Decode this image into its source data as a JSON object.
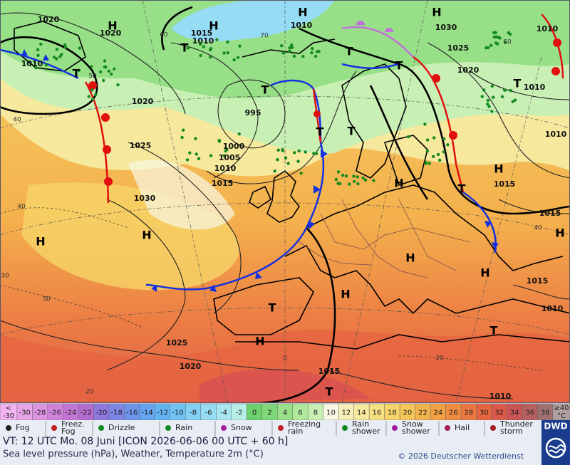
{
  "map": {
    "pressure_labels": [
      "1020",
      "1020",
      "1010",
      "1015",
      "1010",
      "1010",
      "1030",
      "1025",
      "1020",
      "1010",
      "1020",
      "995",
      "1025",
      "1000",
      "1005",
      "1010",
      "1015",
      "1030",
      "1015",
      "1010",
      "1015",
      "1015",
      "1010",
      "1025",
      "1020",
      "1015",
      "1010",
      "1010"
    ],
    "isotherm_labels": [
      "60",
      "60",
      "50",
      "40",
      "40",
      "30",
      "30",
      "40",
      "20",
      "20",
      "0",
      "70"
    ],
    "highs": [
      "H",
      "H",
      "H",
      "H",
      "H",
      "H",
      "H",
      "H",
      "H",
      "H",
      "H",
      "H",
      "H"
    ],
    "lows": [
      "T",
      "T",
      "T",
      "T",
      "T",
      "T",
      "T",
      "T",
      "T",
      "T",
      "T",
      "T"
    ]
  },
  "temperature_scale": {
    "low": {
      "lines": [
        "<",
        "-30"
      ],
      "color": "#f4b4f4"
    },
    "steps": [
      {
        "label": "-30",
        "color": "#e9a3e9"
      },
      {
        "label": "-28",
        "color": "#de93e3"
      },
      {
        "label": "-26",
        "color": "#d183dc"
      },
      {
        "label": "-24",
        "color": "#c476d6"
      },
      {
        "label": "-22",
        "color": "#b46bd0"
      },
      {
        "label": "-20",
        "color": "#8c78e0"
      },
      {
        "label": "-18",
        "color": "#7d86e6"
      },
      {
        "label": "-16",
        "color": "#6e94ec"
      },
      {
        "label": "-14",
        "color": "#64a4f0"
      },
      {
        "label": "-12",
        "color": "#62b4f2"
      },
      {
        "label": "-10",
        "color": "#6fc4f4"
      },
      {
        "label": "-8",
        "color": "#82d0f4"
      },
      {
        "label": "-6",
        "color": "#96dcf4"
      },
      {
        "label": "-4",
        "color": "#a8e6f0"
      },
      {
        "label": "-2",
        "color": "#b8eee8"
      },
      {
        "label": "0",
        "color": "#6cd06c"
      },
      {
        "label": "2",
        "color": "#80d878"
      },
      {
        "label": "4",
        "color": "#98e088"
      },
      {
        "label": "6",
        "color": "#b0e89c"
      },
      {
        "label": "8",
        "color": "#c8f0b4"
      },
      {
        "label": "10",
        "color": "#f8f8e4"
      },
      {
        "label": "12",
        "color": "#f6f0b8"
      },
      {
        "label": "14",
        "color": "#f6e89c"
      },
      {
        "label": "16",
        "color": "#f6e080"
      },
      {
        "label": "18",
        "color": "#f6d468"
      },
      {
        "label": "20",
        "color": "#f6c658"
      },
      {
        "label": "22",
        "color": "#f4b44c"
      },
      {
        "label": "24",
        "color": "#f2a044"
      },
      {
        "label": "26",
        "color": "#f08c40"
      },
      {
        "label": "28",
        "color": "#ec7840"
      },
      {
        "label": "30",
        "color": "#e66440"
      },
      {
        "label": "32",
        "color": "#dc5848"
      },
      {
        "label": "34",
        "color": "#cc5454"
      },
      {
        "label": "36",
        "color": "#b86060"
      },
      {
        "label": "38",
        "color": "#a07070"
      }
    ],
    "high": {
      "lines": [
        "≥40",
        "°C"
      ],
      "color": "#b0a0a0"
    }
  },
  "weather_legend": [
    {
      "lines": [
        "Fog"
      ]
    },
    {
      "lines": [
        "Freez.",
        "Fog"
      ]
    },
    {
      "lines": [
        "Drizzle"
      ]
    },
    {
      "lines": [
        "Rain"
      ]
    },
    {
      "lines": [
        "Snow"
      ]
    },
    {
      "lines": [
        "Freezing",
        "rain"
      ]
    },
    {
      "lines": [
        "Rain",
        "shower"
      ]
    },
    {
      "lines": [
        "Snow",
        "shower"
      ]
    },
    {
      "lines": [
        "Hail"
      ]
    },
    {
      "lines": [
        "Thunder",
        "storm"
      ]
    }
  ],
  "footer": {
    "valid_time": "VT: 12 UTC Mo.   08 Juni [ICON 2026-06-06  00 UTC + 60 h]",
    "description": "Sea level pressure (hPa), Weather, Temperature 2m (°C)",
    "copyright": "© 2026 Deutscher Wetterdienst",
    "logo": "DWD"
  }
}
